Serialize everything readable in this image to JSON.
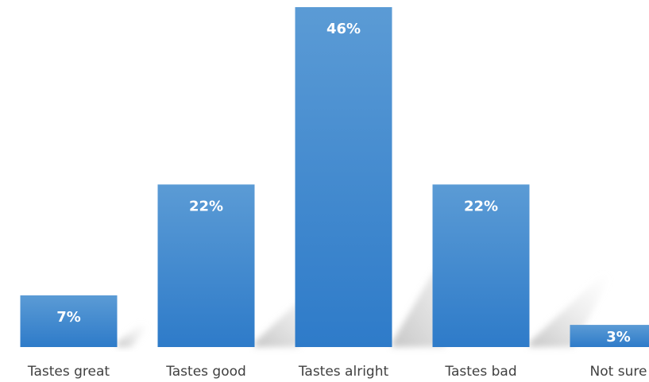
{
  "chart_data": {
    "type": "bar",
    "categories": [
      "Tastes great",
      "Tastes good",
      "Tastes alright",
      "Tastes bad",
      "Not sure"
    ],
    "values": [
      7,
      22,
      46,
      22,
      3
    ],
    "value_labels": [
      "7%",
      "22%",
      "46%",
      "22%",
      "3%"
    ],
    "title": "",
    "xlabel": "",
    "ylabel": "",
    "ylim": [
      0,
      46
    ],
    "grid": false,
    "legend": "none",
    "colors": {
      "bar_top": "#5b9bd5",
      "bar_bottom": "#2e7bc9",
      "shadow": "#c8c8c8",
      "label_text": "#404040",
      "value_text": "#ffffff"
    }
  }
}
